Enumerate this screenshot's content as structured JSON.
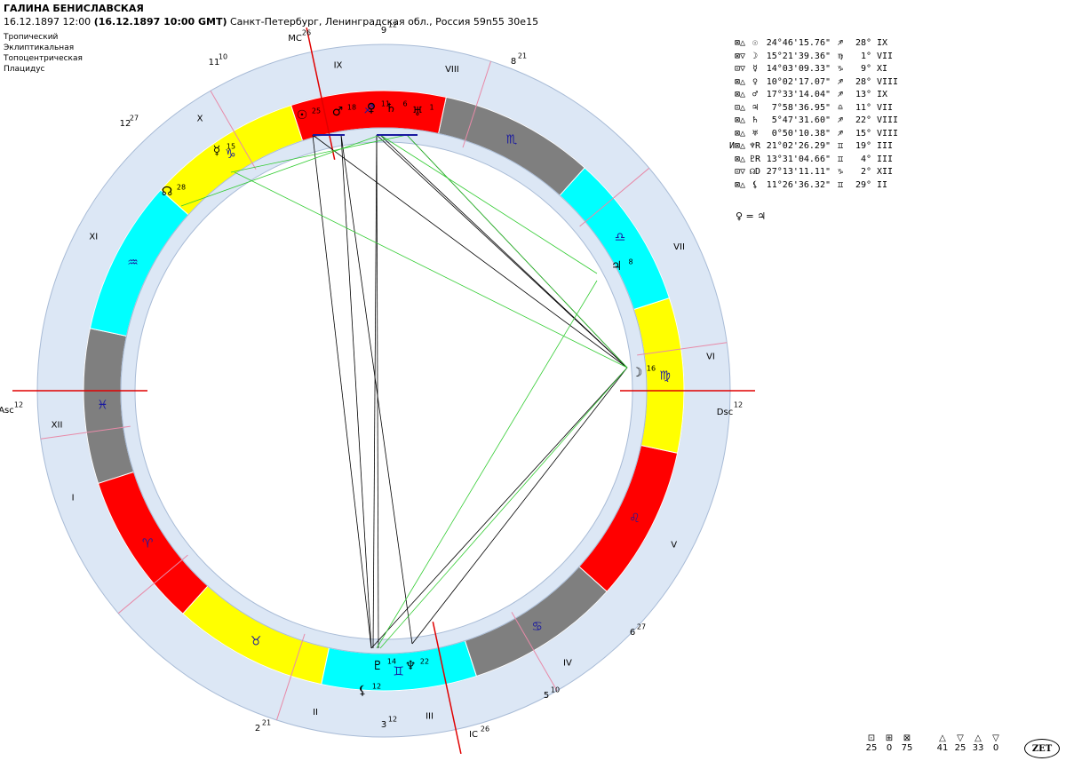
{
  "header": {
    "name": "ГАЛИНА БЕНИСЛАВСКАЯ",
    "date_local": "16.12.1897",
    "time_local": "12:00",
    "utc_paren": "(16.12.1897  10:00 GMT)",
    "place": "Санкт-Петербург, Ленинградская обл., Россия 59n55  30e15"
  },
  "settings": [
    "Тропический",
    "Эклиптикальная",
    "Топоцентрическая",
    "Плацидус"
  ],
  "planets": [
    {
      "asp": "⊠△",
      "sym": "☉",
      "pos": "24°46'15.76\"",
      "sign": "♐",
      "deg": "28°",
      "house": "IX"
    },
    {
      "asp": "⊠▽",
      "sym": "☽",
      "pos": "15°21'39.36\"",
      "sign": "♍",
      "deg": "1°",
      "house": "VII"
    },
    {
      "asp": "⊡▽",
      "sym": "☿",
      "pos": "14°03'09.33\"",
      "sign": "♑",
      "deg": "9°",
      "house": "XI"
    },
    {
      "asp": "⊠△",
      "sym": "♀",
      "pos": "10°02'17.07\"",
      "sign": "♐",
      "deg": "28°",
      "house": "VIII"
    },
    {
      "asp": "⊠△",
      "sym": "♂",
      "pos": "17°33'14.04\"",
      "sign": "♐",
      "deg": "13°",
      "house": "IX"
    },
    {
      "asp": "⊡△",
      "sym": "♃",
      "pos": "7°58'36.95\"",
      "sign": "♎",
      "deg": "11°",
      "house": "VII"
    },
    {
      "asp": "⊠△",
      "sym": "♄",
      "pos": "5°47'31.60\"",
      "sign": "♐",
      "deg": "22°",
      "house": "VIII"
    },
    {
      "asp": "⊠△",
      "sym": "♅",
      "pos": "0°50'10.38\"",
      "sign": "♐",
      "deg": "15°",
      "house": "VIII"
    },
    {
      "asp": "И⊠△",
      "sym": "♆R",
      "pos": "21°02'26.29\"",
      "sign": "♊",
      "deg": "19°",
      "house": "III"
    },
    {
      "asp": "⊠△",
      "sym": "♇R",
      "pos": "13°31'04.66\"",
      "sign": "♊",
      "deg": "4°",
      "house": "III"
    },
    {
      "asp": "⊡▽",
      "sym": "☊D",
      "pos": "27°13'11.11\"",
      "sign": "♑",
      "deg": "2°",
      "house": "XII"
    },
    {
      "asp": "⊠△",
      "sym": "⚸",
      "pos": "11°26'36.32\"",
      "sign": "♊",
      "deg": "29°",
      "house": "II"
    }
  ],
  "conjunction_note": "♀ = ♃",
  "aspect_stats": {
    "squares": [
      {
        "icon": "⊡",
        "val": "25"
      },
      {
        "icon": "⊞",
        "val": "0"
      },
      {
        "icon": "⊠",
        "val": "75"
      }
    ],
    "triangles": [
      {
        "icon": "△",
        "val": "41"
      },
      {
        "icon": "▽",
        "val": "25"
      },
      {
        "icon": "△",
        "val": "33"
      },
      {
        "icon": "▽",
        "val": "0"
      }
    ]
  },
  "logo": "ZET",
  "chart": {
    "asc_label": "Asc",
    "asc_deg": "12",
    "dsc_label": "Dsc",
    "dsc_deg": "12",
    "mc_label": "MC",
    "mc_deg": "26",
    "ic_label": "IC",
    "ic_deg": "26",
    "houses": [
      {
        "roman": "I"
      },
      {
        "roman": "II"
      },
      {
        "roman": "III"
      },
      {
        "roman": "IV"
      },
      {
        "roman": "V"
      },
      {
        "roman": "VI"
      },
      {
        "roman": "VII"
      },
      {
        "roman": "VIII"
      },
      {
        "roman": "IX"
      },
      {
        "roman": "X"
      },
      {
        "roman": "XI"
      },
      {
        "roman": "XII"
      }
    ],
    "cusp_labels": [
      {
        "num": "2",
        "deg": "21"
      },
      {
        "num": "3",
        "deg": "12"
      },
      {
        "num": "5",
        "deg": "10"
      },
      {
        "num": "6",
        "deg": "27"
      },
      {
        "num": "8",
        "deg": "21"
      },
      {
        "num": "9",
        "deg": "12"
      },
      {
        "num": "11",
        "deg": "10"
      },
      {
        "num": "12",
        "deg": "27"
      }
    ],
    "signs": [
      {
        "glyph": "♓",
        "color": "#7f7f7f"
      },
      {
        "glyph": "♈",
        "color": "#ff0000"
      },
      {
        "glyph": "♉",
        "color": "#ffff00"
      },
      {
        "glyph": "♊",
        "color": "#00ffff"
      },
      {
        "glyph": "♋",
        "color": "#7f7f7f"
      },
      {
        "glyph": "♌",
        "color": "#ff0000"
      },
      {
        "glyph": "♍",
        "color": "#ffff00"
      },
      {
        "glyph": "♎",
        "color": "#00ffff"
      },
      {
        "glyph": "♏",
        "color": "#7f7f7f"
      },
      {
        "glyph": "♐",
        "color": "#ff0000"
      },
      {
        "glyph": "♑",
        "color": "#ffff00"
      },
      {
        "glyph": "♒",
        "color": "#00ffff"
      }
    ],
    "planet_marks": [
      {
        "glyph": "☉",
        "deg": "25"
      },
      {
        "glyph": "♂",
        "deg": "18"
      },
      {
        "glyph": "♀",
        "deg": "11"
      },
      {
        "glyph": "♄",
        "deg": "6"
      },
      {
        "glyph": "♅",
        "deg": "1"
      },
      {
        "glyph": "☿",
        "deg": "15"
      },
      {
        "glyph": "☊",
        "deg": "28"
      },
      {
        "glyph": "♃",
        "deg": "8"
      },
      {
        "glyph": "☽",
        "deg": "16"
      },
      {
        "glyph": "♇",
        "deg": "14"
      },
      {
        "glyph": "♆",
        "deg": "22"
      },
      {
        "glyph": "⚸",
        "deg": "12"
      }
    ]
  }
}
